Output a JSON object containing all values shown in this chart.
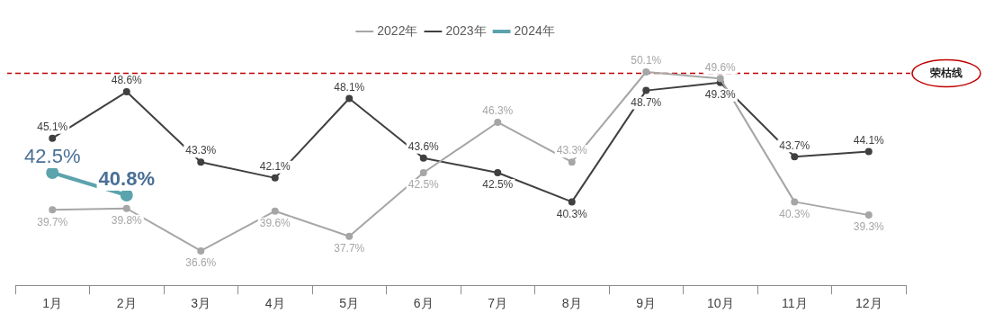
{
  "chart_data": {
    "type": "line",
    "categories": [
      "1月",
      "2月",
      "3月",
      "4月",
      "5月",
      "6月",
      "7月",
      "8月",
      "9月",
      "10月",
      "11月",
      "12月"
    ],
    "series": [
      {
        "name": "2022年",
        "color": "#a6a6a6",
        "values": [
          39.7,
          39.8,
          36.6,
          39.6,
          37.7,
          42.5,
          46.3,
          43.3,
          50.1,
          49.6,
          40.3,
          39.3
        ],
        "value_labels": [
          "39.7%",
          "39.8%",
          "36.6%",
          "39.6%",
          "37.7%",
          "42.5%",
          "46.3%",
          "43.3%",
          "50.1%",
          "49.6%",
          "40.3%",
          "39.3%"
        ]
      },
      {
        "name": "2023年",
        "color": "#404040",
        "values": [
          45.1,
          48.6,
          43.3,
          42.1,
          48.1,
          43.6,
          42.5,
          40.3,
          48.7,
          49.3,
          43.7,
          44.1
        ],
        "value_labels": [
          "45.1%",
          "48.6%",
          "43.3%",
          "42.1%",
          "48.1%",
          "43.6%",
          "42.5%",
          "40.3%",
          "48.7%",
          "49.3%",
          "43.7%",
          "44.1%"
        ]
      },
      {
        "name": "2024年",
        "color": "#5ba3ad",
        "values": [
          42.5,
          40.8,
          null,
          null,
          null,
          null,
          null,
          null,
          null,
          null,
          null,
          null
        ],
        "value_labels": [
          "42.5%",
          "40.8%",
          null,
          null,
          null,
          null,
          null,
          null,
          null,
          null,
          null,
          null
        ]
      }
    ],
    "ref_lines": [
      {
        "axis": "y",
        "value": 50,
        "label": "荣枯线",
        "color": "#c00000",
        "line_style": "dashed"
      }
    ],
    "legend": "top",
    "marker": "circle",
    "line_style": "solid",
    "grid": false
  }
}
